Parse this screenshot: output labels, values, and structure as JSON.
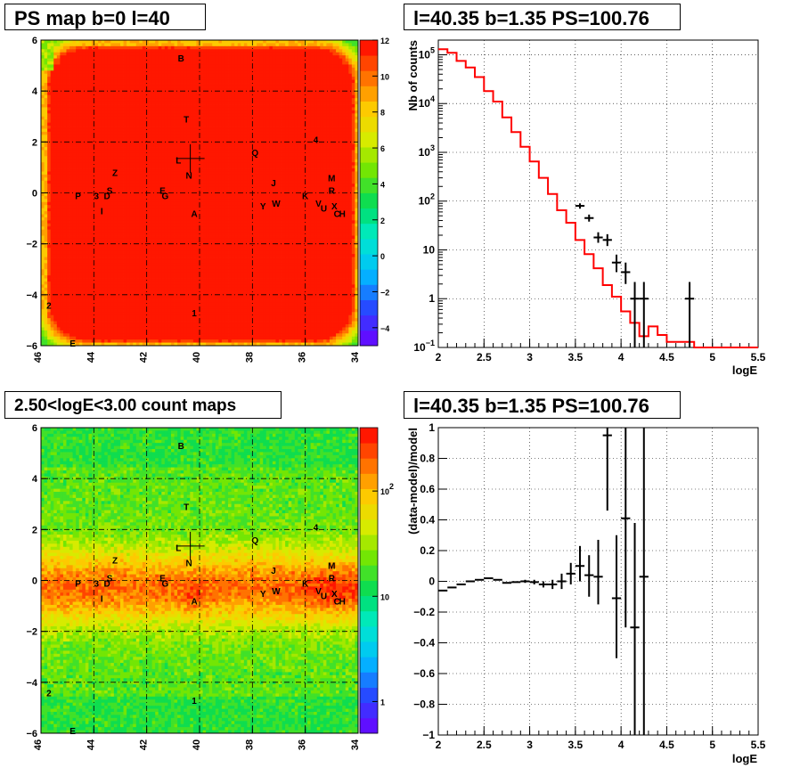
{
  "panels": {
    "ps_map": {
      "title": "PS map b=0 l=40",
      "colorbar_ticks": [
        -4,
        -2,
        0,
        2,
        4,
        6,
        8,
        10,
        12
      ],
      "colorbar_range": [
        -5,
        12
      ],
      "x_ticks": [
        46,
        44,
        42,
        40,
        38,
        36,
        34
      ],
      "y_ticks": [
        6,
        4,
        2,
        0,
        -2,
        -4,
        -6
      ]
    },
    "spectrum": {
      "title": "l=40.35 b=1.35 PS=100.76",
      "ylabel": "Nb of counts",
      "xlabel": "logE",
      "x_ticks": [
        "2",
        "2.5",
        "3",
        "3.5",
        "4",
        "4.5",
        "5",
        "5.5"
      ],
      "y_tick_labels": [
        {
          "v": 0.1,
          "t": "10",
          "e": "−1"
        },
        {
          "v": 1,
          "t": "1",
          "e": ""
        },
        {
          "v": 10,
          "t": "10",
          "e": ""
        },
        {
          "v": 100,
          "t": "10",
          "e": "2"
        },
        {
          "v": 1000,
          "t": "10",
          "e": "3"
        },
        {
          "v": 10000,
          "t": "10",
          "e": "4"
        },
        {
          "v": 100000,
          "t": "10",
          "e": "5"
        }
      ]
    },
    "count_map": {
      "title": "2.50<logE<3.00 count maps",
      "colorbar_ticks": [
        {
          "v": 1,
          "t": "1",
          "e": ""
        },
        {
          "v": 10,
          "t": "10",
          "e": ""
        },
        {
          "v": 100,
          "t": "10",
          "e": "2"
        }
      ]
    },
    "residual": {
      "title": "l=40.35 b=1.35 PS=100.76",
      "ylabel": "(data-model)/model",
      "xlabel": "logE",
      "x_ticks": [
        "2",
        "2.5",
        "3",
        "3.5",
        "4",
        "4.5",
        "5",
        "5.5"
      ],
      "y_ticks": [
        "−1",
        "−0.8",
        "−0.6",
        "−0.4",
        "−0.2",
        "0",
        "0.2",
        "0.4",
        "0.6",
        "0.8",
        "1"
      ]
    }
  },
  "source_labels": [
    {
      "t": "B",
      "l": 40.7,
      "b": 5.3
    },
    {
      "t": "T",
      "l": 40.5,
      "b": 2.9
    },
    {
      "t": "4",
      "l": 35.6,
      "b": 2.1
    },
    {
      "t": "Q",
      "l": 37.9,
      "b": 1.6
    },
    {
      "t": "L",
      "l": 40.8,
      "b": 1.3
    },
    {
      "t": "N",
      "l": 40.4,
      "b": 0.7
    },
    {
      "t": "Z",
      "l": 43.2,
      "b": 0.8
    },
    {
      "t": "J",
      "l": 37.2,
      "b": 0.4
    },
    {
      "t": "M",
      "l": 35.0,
      "b": 0.6
    },
    {
      "t": "S",
      "l": 43.4,
      "b": 0.1
    },
    {
      "t": "E",
      "l": 41.4,
      "b": 0.1
    },
    {
      "t": "R",
      "l": 35.0,
      "b": 0.1
    },
    {
      "t": "P",
      "l": 44.6,
      "b": -0.1
    },
    {
      "t": "3",
      "l": 43.9,
      "b": -0.1
    },
    {
      "t": "D",
      "l": 43.5,
      "b": -0.1
    },
    {
      "t": "G",
      "l": 41.3,
      "b": -0.1
    },
    {
      "t": "K",
      "l": 36.0,
      "b": -0.1
    },
    {
      "t": "Y",
      "l": 37.6,
      "b": -0.5
    },
    {
      "t": "W",
      "l": 37.1,
      "b": -0.4
    },
    {
      "t": "V",
      "l": 35.5,
      "b": -0.4
    },
    {
      "t": "U",
      "l": 35.3,
      "b": -0.6
    },
    {
      "t": "X",
      "l": 34.9,
      "b": -0.5
    },
    {
      "t": "C",
      "l": 34.8,
      "b": -0.8
    },
    {
      "t": "H",
      "l": 34.6,
      "b": -0.8
    },
    {
      "t": "I",
      "l": 43.7,
      "b": -0.7
    },
    {
      "t": "A",
      "l": 40.2,
      "b": -0.8
    },
    {
      "t": "2",
      "l": 45.7,
      "b": -4.4
    },
    {
      "t": "1",
      "l": 40.2,
      "b": -4.7
    },
    {
      "t": "E",
      "l": 44.8,
      "b": -5.9
    }
  ],
  "chart_data": [
    {
      "type": "heatmap",
      "title": "PS map b=0 l=40",
      "x_ticks": [
        46,
        44,
        42,
        40,
        38,
        36,
        34
      ],
      "y_ticks": [
        -6,
        -4,
        -2,
        0,
        2,
        4,
        6
      ],
      "xlim": [
        46,
        34
      ],
      "ylim": [
        -6,
        6
      ],
      "color_range": [
        -5,
        12
      ],
      "marker": {
        "l": 40.35,
        "b": 1.35
      }
    },
    {
      "type": "line",
      "title": "l=40.35 b=1.35 PS=100.76",
      "xlabel": "logE",
      "ylabel": "Nb of counts",
      "xlim": [
        2,
        5.5
      ],
      "ylim": [
        0.1,
        200000
      ],
      "y_scale": "log",
      "grid": true,
      "series": [
        {
          "type": "step",
          "color": "#ff0000",
          "bin_edges": [
            2,
            2.1,
            2.2,
            2.3,
            2.4,
            2.5,
            2.6,
            2.7,
            2.8,
            2.9,
            3,
            3.1,
            3.2,
            3.3,
            3.4,
            3.5,
            3.6,
            3.7,
            3.8,
            3.9,
            4,
            4.1,
            4.2,
            4.3,
            4.4,
            4.5,
            4.6,
            4.7,
            4.8,
            4.9,
            5,
            5.1,
            5.2,
            5.3,
            5.4,
            5.5
          ],
          "values": [
            130000,
            110000,
            75000,
            55000,
            35000,
            18000,
            11000,
            5200,
            2600,
            1300,
            650,
            300,
            140,
            65,
            36,
            16,
            8.2,
            4.2,
            1.9,
            1.1,
            0.55,
            0.32,
            0.17,
            0.27,
            0.18,
            0.13,
            0.13,
            0.13,
            0.1,
            0.1,
            0.1,
            0.1,
            0.1,
            0.1,
            0.1
          ]
        },
        {
          "type": "errorbar",
          "color": "#000000",
          "points": [
            {
              "x": 3.55,
              "y": 80,
              "lo": 70,
              "hi": 90
            },
            {
              "x": 3.65,
              "y": 45,
              "lo": 38,
              "hi": 53
            },
            {
              "x": 3.75,
              "y": 18,
              "lo": 14,
              "hi": 23
            },
            {
              "x": 3.85,
              "y": 16,
              "lo": 12,
              "hi": 21
            },
            {
              "x": 3.95,
              "y": 5.5,
              "lo": 3.5,
              "hi": 8
            },
            {
              "x": 4.05,
              "y": 3.5,
              "lo": 2,
              "hi": 5.5
            },
            {
              "x": 4.15,
              "y": 1,
              "lo": 0.1,
              "hi": 2.2
            },
            {
              "x": 4.25,
              "y": 1,
              "lo": 0.1,
              "hi": 2.2
            },
            {
              "x": 4.75,
              "y": 1,
              "lo": 0.1,
              "hi": 2.2
            }
          ]
        }
      ]
    },
    {
      "type": "heatmap",
      "title": "2.50<logE<3.00 count maps",
      "x_ticks": [
        46,
        44,
        42,
        40,
        38,
        36,
        34
      ],
      "y_ticks": [
        -6,
        -4,
        -2,
        0,
        2,
        4,
        6
      ],
      "xlim": [
        46,
        34
      ],
      "ylim": [
        -6,
        6
      ],
      "color_scale": "log",
      "color_range": [
        0.5,
        400
      ],
      "marker": {
        "l": 40.35,
        "b": 1.35
      }
    },
    {
      "type": "scatter",
      "title": "l=40.35 b=1.35 PS=100.76",
      "xlabel": "logE",
      "ylabel": "(data-model)/model",
      "xlim": [
        2,
        5.5
      ],
      "ylim": [
        -1,
        1
      ],
      "grid": true,
      "points": [
        {
          "x": 2.05,
          "y": -0.06,
          "lo": -0.06,
          "hi": -0.06
        },
        {
          "x": 2.15,
          "y": -0.04,
          "lo": -0.04,
          "hi": -0.04
        },
        {
          "x": 2.25,
          "y": -0.02,
          "lo": -0.02,
          "hi": -0.02
        },
        {
          "x": 2.35,
          "y": 0.0,
          "lo": 0.0,
          "hi": 0.0
        },
        {
          "x": 2.45,
          "y": 0.01,
          "lo": 0.01,
          "hi": 0.01
        },
        {
          "x": 2.55,
          "y": 0.02,
          "lo": 0.02,
          "hi": 0.02
        },
        {
          "x": 2.65,
          "y": 0.01,
          "lo": 0.01,
          "hi": 0.01
        },
        {
          "x": 2.75,
          "y": -0.01,
          "lo": -0.01,
          "hi": -0.01
        },
        {
          "x": 2.85,
          "y": -0.005,
          "lo": -0.005,
          "hi": -0.005
        },
        {
          "x": 2.95,
          "y": 0.0,
          "lo": -0.01,
          "hi": 0.01
        },
        {
          "x": 3.05,
          "y": -0.005,
          "lo": -0.02,
          "hi": 0.01
        },
        {
          "x": 3.15,
          "y": -0.02,
          "lo": -0.04,
          "hi": 0.0
        },
        {
          "x": 3.25,
          "y": -0.02,
          "lo": -0.05,
          "hi": 0.01
        },
        {
          "x": 3.35,
          "y": 0.0,
          "lo": -0.05,
          "hi": 0.05
        },
        {
          "x": 3.45,
          "y": 0.05,
          "lo": -0.02,
          "hi": 0.12
        },
        {
          "x": 3.55,
          "y": 0.1,
          "lo": 0.0,
          "hi": 0.23
        },
        {
          "x": 3.65,
          "y": 0.04,
          "lo": -0.1,
          "hi": 0.17
        },
        {
          "x": 3.75,
          "y": 0.03,
          "lo": -0.15,
          "hi": 0.27
        },
        {
          "x": 3.85,
          "y": 0.95,
          "lo": 0.46,
          "hi": 1.0
        },
        {
          "x": 3.95,
          "y": -0.11,
          "lo": -0.5,
          "hi": 0.3
        },
        {
          "x": 4.05,
          "y": 0.41,
          "lo": -0.3,
          "hi": 1.0
        },
        {
          "x": 4.15,
          "y": -0.3,
          "lo": -1.0,
          "hi": 0.38
        },
        {
          "x": 4.25,
          "y": 0.03,
          "lo": -1.0,
          "hi": 1.0
        }
      ]
    }
  ]
}
